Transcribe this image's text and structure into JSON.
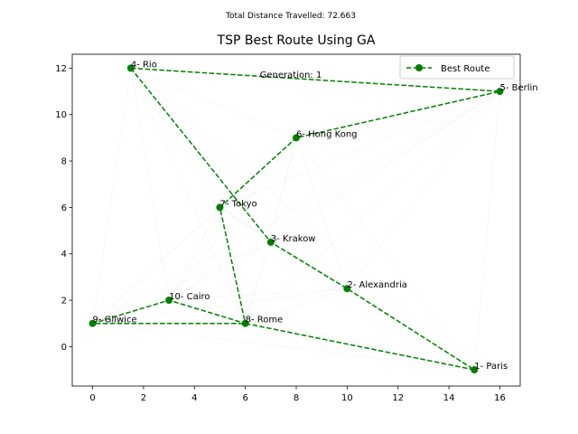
{
  "chart_data": {
    "type": "scatter",
    "suptitle": "Total Distance Travelled: 72.663",
    "title": "TSP Best Route Using GA",
    "annotation": "Generation: 1",
    "xlim": [
      -0.8,
      16.8
    ],
    "ylim": [
      -1.7,
      12.6
    ],
    "xticks": [
      0,
      2,
      4,
      6,
      8,
      10,
      12,
      14,
      16
    ],
    "yticks": [
      0,
      2,
      4,
      6,
      8,
      10,
      12
    ],
    "grid": false,
    "legend": {
      "placement": "top-right",
      "entries": [
        "Best Route"
      ]
    },
    "colors": {
      "route": "#008000",
      "background_lines": "#b0b0b0"
    },
    "cities": [
      {
        "label": "1- Paris",
        "x": 15,
        "y": -1
      },
      {
        "label": "2- Alexandria",
        "x": 10,
        "y": 2.5
      },
      {
        "label": "3- Krakow",
        "x": 7,
        "y": 4.5
      },
      {
        "label": "4- Rio",
        "x": 1.5,
        "y": 12
      },
      {
        "label": "5- Berlin",
        "x": 16,
        "y": 11
      },
      {
        "label": "6- Hong Kong",
        "x": 8,
        "y": 9
      },
      {
        "label": "7- Tokyo",
        "x": 5,
        "y": 6
      },
      {
        "label": "8- Rome",
        "x": 6,
        "y": 1
      },
      {
        "label": "9- Gliwice",
        "x": 0,
        "y": 1
      },
      {
        "label": "10- Cairo",
        "x": 3,
        "y": 2
      }
    ],
    "series": [
      {
        "name": "Best Route",
        "route_order": [
          4,
          5,
          6,
          7,
          8,
          10,
          9,
          8,
          1,
          2,
          3,
          4
        ]
      }
    ]
  }
}
